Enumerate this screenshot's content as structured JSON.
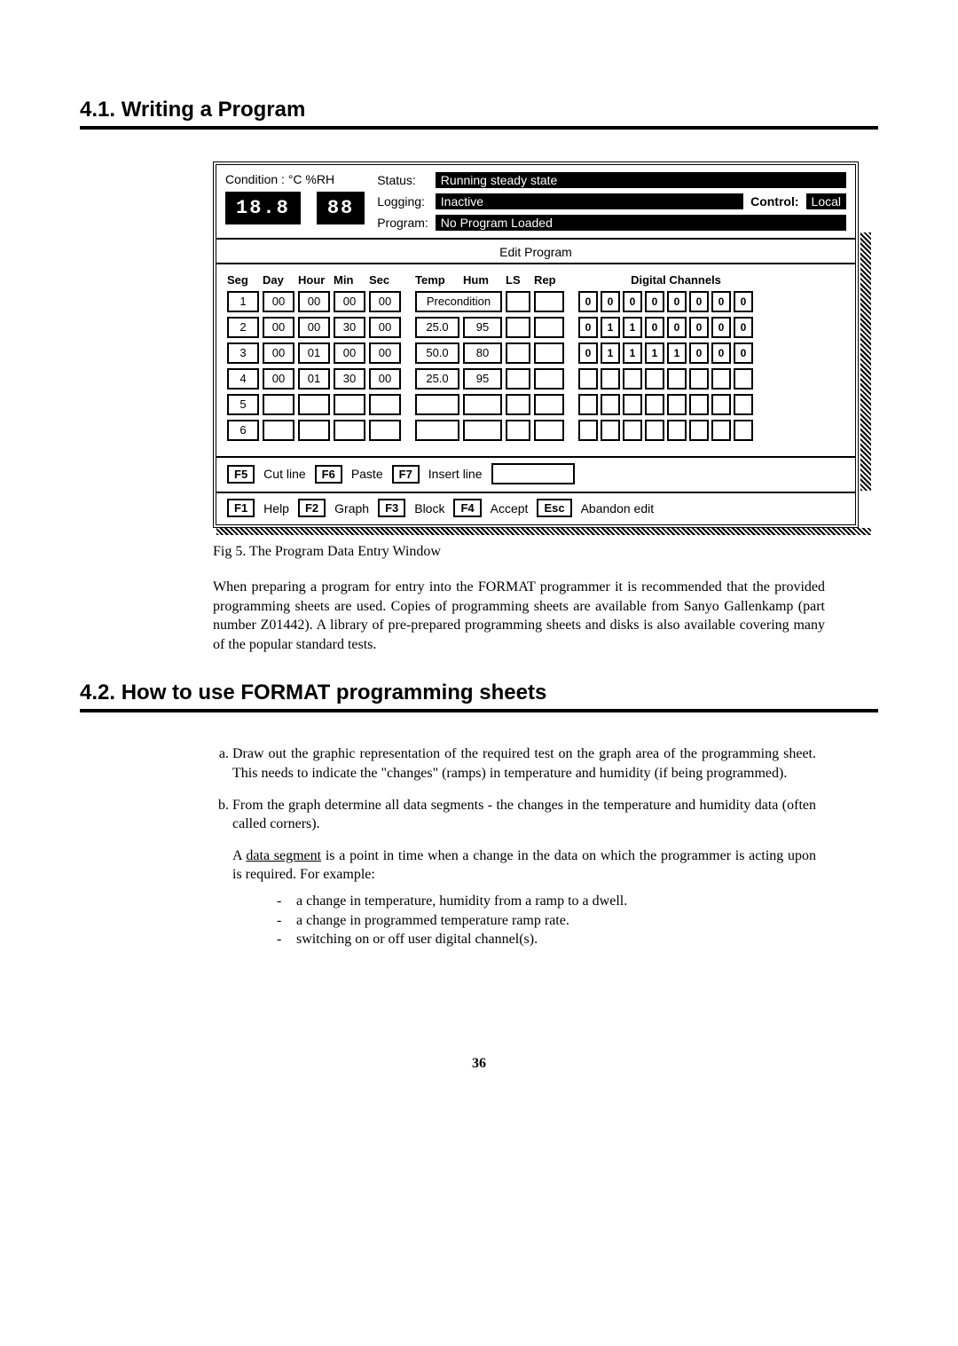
{
  "section1_heading": "4.1.  Writing a Program",
  "section2_heading": "4.2.  How to use FORMAT programming sheets",
  "condition_label": "Condition :   °C        %RH",
  "lcd_temp": "18.8",
  "lcd_hum": "88",
  "status": {
    "status_label": "Status:",
    "status_val": "Running steady state",
    "logging_label": "Logging:",
    "logging_val": "Inactive",
    "control_label": "Control:",
    "control_val": "Local",
    "program_label": "Program:",
    "program_val": "No Program Loaded"
  },
  "edit_title": "Edit Program",
  "headers": {
    "seg": "Seg",
    "day": "Day",
    "hour": "Hour",
    "min": "Min",
    "sec": "Sec",
    "temp": "Temp",
    "hum": "Hum",
    "ls": "LS",
    "rep": "Rep",
    "dc": "Digital Channels"
  },
  "rows": [
    {
      "seg": "1",
      "day": "00",
      "hour": "00",
      "min": "00",
      "sec": "00",
      "precond": "Precondition",
      "ls": "",
      "rep": "",
      "dc": [
        "0",
        "0",
        "0",
        "0",
        "0",
        "0",
        "0",
        "0"
      ]
    },
    {
      "seg": "2",
      "day": "00",
      "hour": "00",
      "min": "30",
      "sec": "00",
      "temp": "25.0",
      "hum": "95",
      "ls": "",
      "rep": "",
      "dc": [
        "0",
        "1",
        "1",
        "0",
        "0",
        "0",
        "0",
        "0"
      ]
    },
    {
      "seg": "3",
      "day": "00",
      "hour": "01",
      "min": "00",
      "sec": "00",
      "temp": "50.0",
      "hum": "80",
      "ls": "",
      "rep": "",
      "dc": [
        "0",
        "1",
        "1",
        "1",
        "1",
        "0",
        "0",
        "0"
      ]
    },
    {
      "seg": "4",
      "day": "00",
      "hour": "01",
      "min": "30",
      "sec": "00",
      "temp": "25.0",
      "hum": "95",
      "ls": "",
      "rep": "",
      "dc": [
        "",
        "",
        "",
        "",
        "",
        "",
        "",
        ""
      ]
    },
    {
      "seg": "5",
      "day": "",
      "hour": "",
      "min": "",
      "sec": "",
      "temp": "",
      "hum": "",
      "ls": "",
      "rep": "",
      "dc": [
        "",
        "",
        "",
        "",
        "",
        "",
        "",
        ""
      ]
    },
    {
      "seg": "6",
      "day": "",
      "hour": "",
      "min": "",
      "sec": "",
      "temp": "",
      "hum": "",
      "ls": "",
      "rep": "",
      "dc": [
        "",
        "",
        "",
        "",
        "",
        "",
        "",
        ""
      ]
    }
  ],
  "fkeys_row1": [
    {
      "key": "F5",
      "label": "Cut line"
    },
    {
      "key": "F6",
      "label": "Paste"
    },
    {
      "key": "F7",
      "label": "Insert line"
    }
  ],
  "fkeys_row2": [
    {
      "key": "F1",
      "label": "Help"
    },
    {
      "key": "F2",
      "label": "Graph"
    },
    {
      "key": "F3",
      "label": "Block"
    },
    {
      "key": "F4",
      "label": "Accept"
    },
    {
      "key": "Esc",
      "label": "Abandon edit"
    }
  ],
  "caption": "Fig 5. The Program Data Entry Window",
  "para1": "When preparing a program for entry into the FORMAT programmer it is recommended that the provided programming sheets are used. Copies of programming sheets are available from Sanyo Gallenkamp (part number Z01442). A library of pre-prepared programming sheets and disks is also available covering many of the popular standard tests.",
  "list": {
    "a": "Draw out the graphic representation of the required test on the graph area of the programming sheet. This needs to indicate the \"changes\" (ramps) in temperature and humidity (if being programmed).",
    "b": "From the graph determine all data segments - the changes in the temperature and humidity data (often called corners).",
    "b_para": "A data segment is a point in time when a change in the data on which the programmer is acting upon is required. For example:",
    "b_sub": [
      "a change in temperature, humidity from a ramp to a dwell.",
      "a change in programmed temperature ramp rate.",
      "switching on or off user digital channel(s)."
    ]
  },
  "page_num": "36"
}
